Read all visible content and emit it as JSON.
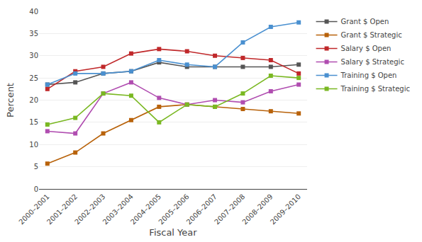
{
  "chart_data": {
    "type": "line",
    "xlabel": "Fiscal Year",
    "ylabel": "Percent",
    "categories": [
      "2000–2001",
      "2001–2002",
      "2002–2003",
      "2003–2004",
      "2004–2005",
      "2005–2006",
      "2006–2007",
      "2007–2008",
      "2008–2009",
      "2009–2010"
    ],
    "series": [
      {
        "name": "Grant $ Open",
        "color": "#555555",
        "values": [
          23.5,
          24.0,
          26.0,
          26.5,
          28.5,
          27.5,
          27.5,
          27.5,
          27.5,
          28.0
        ]
      },
      {
        "name": "Grant $ Strategic",
        "color": "#b8620a",
        "values": [
          5.7,
          8.2,
          12.5,
          15.5,
          18.5,
          19.0,
          18.5,
          18.0,
          17.5,
          17.0
        ]
      },
      {
        "name": "Salary $ Open",
        "color": "#c0282a",
        "values": [
          22.5,
          26.5,
          27.5,
          30.5,
          31.5,
          31.0,
          30.0,
          29.5,
          29.0,
          26.0
        ]
      },
      {
        "name": "Salary $ Strategic",
        "color": "#b04db0",
        "values": [
          13.0,
          12.5,
          21.5,
          24.0,
          20.5,
          19.0,
          20.0,
          19.5,
          22.0,
          23.5
        ]
      },
      {
        "name": "Training $ Open",
        "color": "#4a90d0",
        "values": [
          23.5,
          26.0,
          26.0,
          26.5,
          29.0,
          28.0,
          27.5,
          33.0,
          36.5,
          37.5
        ]
      },
      {
        "name": "Training $ Strategic",
        "color": "#7ab822",
        "values": [
          14.5,
          16.0,
          21.5,
          21.0,
          15.0,
          19.0,
          18.5,
          21.5,
          25.5,
          25.0
        ]
      }
    ],
    "marker": "square",
    "ylim": [
      0,
      40
    ],
    "yticks": [
      0,
      5,
      10,
      15,
      20,
      25,
      30,
      35,
      40
    ],
    "grid": true,
    "legend": "right"
  }
}
